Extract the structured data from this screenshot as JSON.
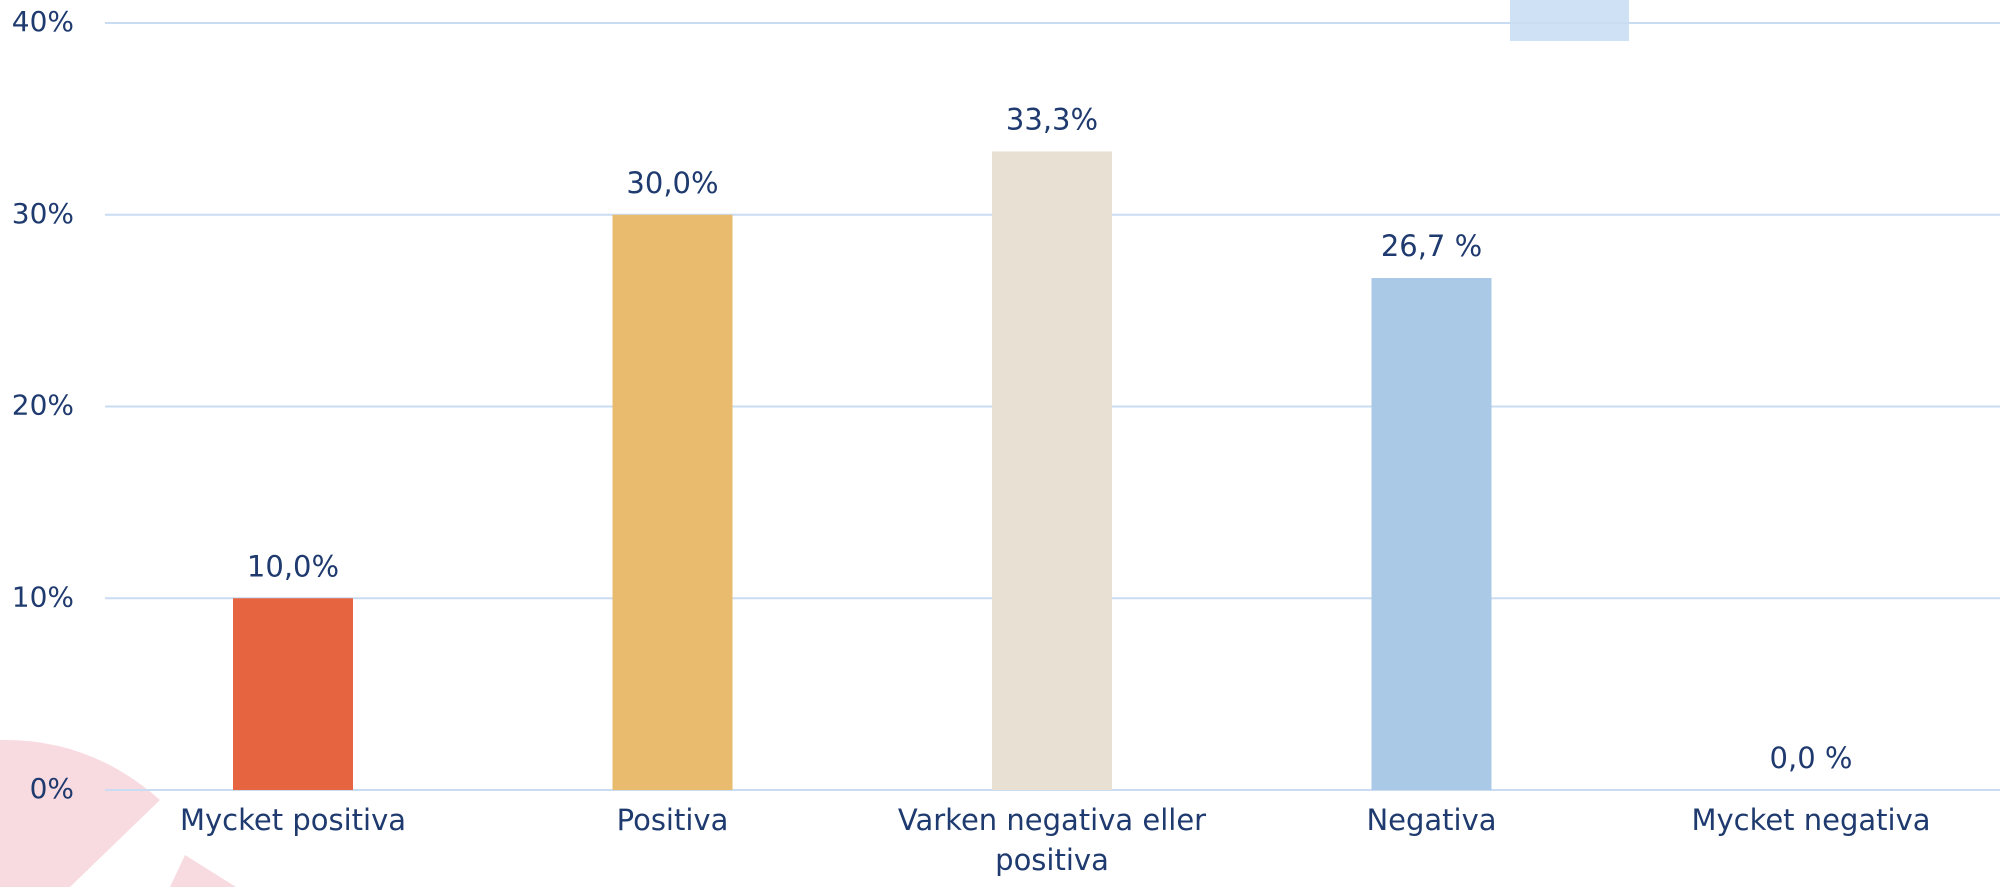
{
  "chart_data": {
    "type": "bar",
    "categories": [
      "Mycket positiva",
      "Positiva",
      "Varken negativa eller positiva",
      "Negativa",
      "Mycket negativa"
    ],
    "values": [
      10,
      30,
      33.3,
      26.7,
      0
    ],
    "value_labels": [
      "10,0%",
      "30,0%",
      "33,3%",
      "26,7 %",
      "0,0 %"
    ],
    "colors": [
      "#e6643f",
      "#e8bb6e",
      "#e8e0d2",
      "#a9c9e7",
      "#1f3a6e"
    ],
    "ylim": [
      0,
      40
    ],
    "yticks": [
      {
        "value": 0,
        "label": "0%"
      },
      {
        "value": 10,
        "label": "10%"
      },
      {
        "value": 20,
        "label": "20%"
      },
      {
        "value": 30,
        "label": "30%"
      },
      {
        "value": 40,
        "label": "40%"
      }
    ],
    "grid": true
  }
}
